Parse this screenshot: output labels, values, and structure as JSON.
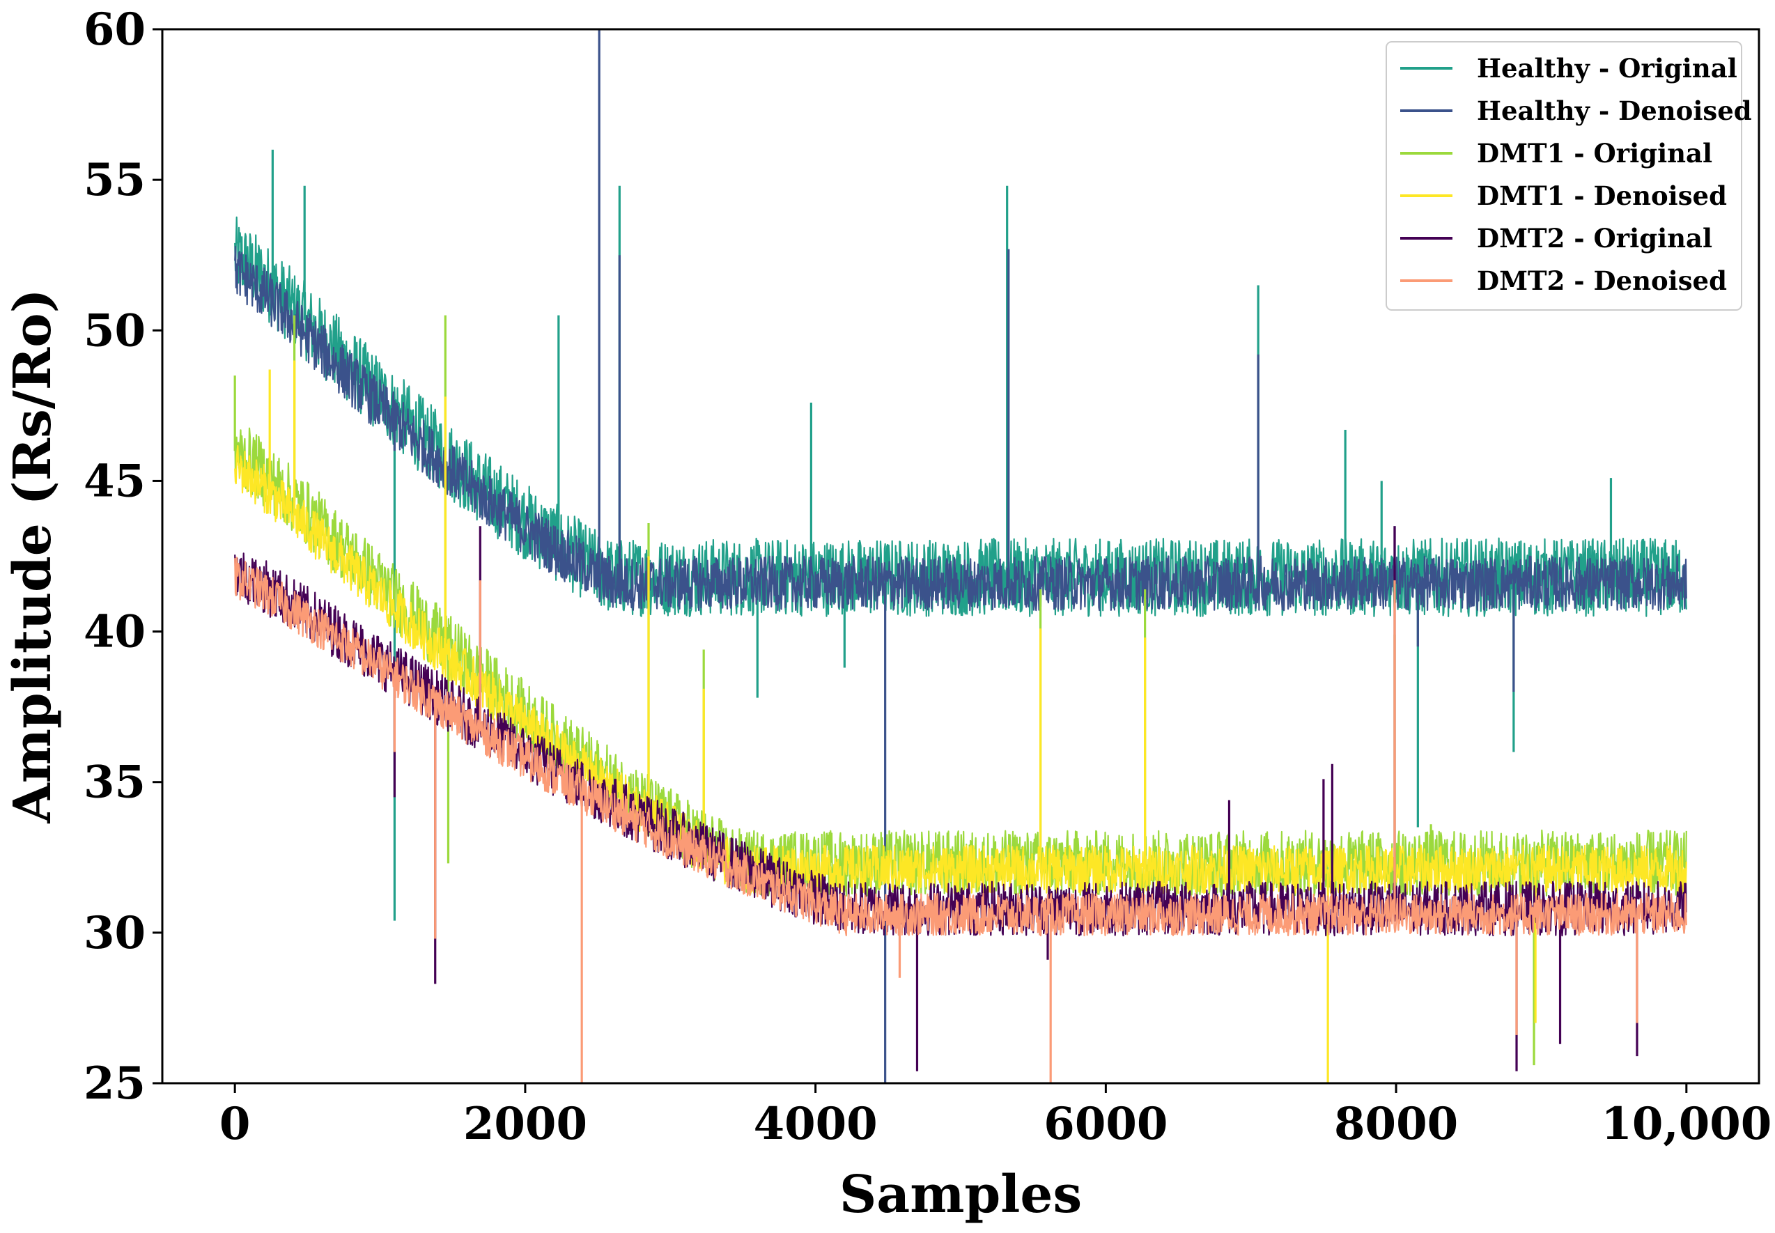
{
  "chart_data": {
    "type": "line",
    "title": "",
    "xlabel": "Samples",
    "ylabel": "Amplitude (Rs/Ro)",
    "xlim": [
      -500,
      10500
    ],
    "ylim": [
      25,
      60
    ],
    "xticks": [
      0,
      2000,
      4000,
      6000,
      8000,
      10000
    ],
    "xtick_labels": [
      "0",
      "2000",
      "4000",
      "6000",
      "8000",
      "10,000"
    ],
    "yticks": [
      25,
      30,
      35,
      40,
      45,
      50,
      55,
      60
    ],
    "ytick_labels": [
      "25",
      "30",
      "35",
      "40",
      "45",
      "50",
      "55",
      "60"
    ],
    "grid": false,
    "legend_position": "top-right",
    "n_samples": 10000,
    "series": [
      {
        "name": "Healthy - Original",
        "color": "#21A08A",
        "start": 52.5,
        "plateau": 41.8,
        "decay_end": 2600,
        "band": 1.3,
        "spikes": [
          [
            260,
            56.0
          ],
          [
            480,
            54.8
          ],
          [
            2230,
            50.5
          ],
          [
            2650,
            54.8
          ],
          [
            3970,
            47.6
          ],
          [
            5320,
            54.8
          ],
          [
            7050,
            51.5
          ],
          [
            7650,
            46.7
          ],
          [
            7900,
            45.0
          ],
          [
            9480,
            45.1
          ],
          [
            1100,
            30.4
          ],
          [
            3600,
            37.8
          ],
          [
            4200,
            38.8
          ],
          [
            8810,
            36.0
          ],
          [
            8150,
            33.5
          ]
        ]
      },
      {
        "name": "Healthy - Denoised",
        "color": "#3B528B",
        "start": 52.0,
        "plateau": 41.6,
        "decay_end": 2600,
        "band": 0.9,
        "spikes": [
          [
            2510,
            60.0
          ],
          [
            2650,
            52.5
          ],
          [
            5330,
            52.7
          ],
          [
            7050,
            49.2
          ],
          [
            1100,
            46.0
          ],
          [
            4480,
            25.0
          ],
          [
            8150,
            39.5
          ],
          [
            8810,
            38.0
          ],
          [
            7990,
            43.5
          ]
        ]
      },
      {
        "name": "DMT1 - Original",
        "color": "#9BD93C",
        "start": 46.0,
        "plateau": 32.3,
        "decay_end": 3500,
        "band": 1.1,
        "spikes": [
          [
            0,
            48.5
          ],
          [
            410,
            50.5
          ],
          [
            1450,
            50.5
          ],
          [
            2850,
            43.6
          ],
          [
            3230,
            39.4
          ],
          [
            5550,
            41.4
          ],
          [
            6270,
            41.4
          ],
          [
            1470,
            32.3
          ],
          [
            8950,
            25.6
          ],
          [
            7990,
            39.9
          ],
          [
            8240,
            33.6
          ]
        ]
      },
      {
        "name": "DMT1 - Denoised",
        "color": "#FDE725",
        "start": 45.5,
        "plateau": 32.1,
        "decay_end": 3500,
        "band": 0.8,
        "spikes": [
          [
            240,
            48.7
          ],
          [
            410,
            49.0
          ],
          [
            1450,
            47.8
          ],
          [
            2850,
            42.5
          ],
          [
            3230,
            38.1
          ],
          [
            5550,
            40.1
          ],
          [
            6270,
            39.8
          ],
          [
            7530,
            25.0
          ],
          [
            8960,
            27.0
          ]
        ]
      },
      {
        "name": "DMT2 - Original",
        "color": "#440154",
        "start": 42.0,
        "plateau": 30.8,
        "decay_end": 4200,
        "band": 0.9,
        "spikes": [
          [
            1690,
            43.5
          ],
          [
            1380,
            28.3
          ],
          [
            1100,
            34.5
          ],
          [
            4700,
            25.4
          ],
          [
            5600,
            29.1
          ],
          [
            7500,
            35.1
          ],
          [
            7560,
            35.6
          ],
          [
            7990,
            43.5
          ],
          [
            8830,
            25.4
          ],
          [
            9130,
            26.3
          ],
          [
            9660,
            25.9
          ],
          [
            6850,
            34.4
          ]
        ]
      },
      {
        "name": "DMT2 - Denoised",
        "color": "#FB9B76",
        "start": 41.8,
        "plateau": 30.6,
        "decay_end": 4200,
        "band": 0.7,
        "spikes": [
          [
            1690,
            41.7
          ],
          [
            1380,
            29.8
          ],
          [
            1100,
            36.0
          ],
          [
            2390,
            25.0
          ],
          [
            5620,
            25.0
          ],
          [
            7990,
            41.7
          ],
          [
            8830,
            26.6
          ],
          [
            4580,
            28.5
          ],
          [
            9660,
            27.0
          ]
        ]
      }
    ]
  }
}
